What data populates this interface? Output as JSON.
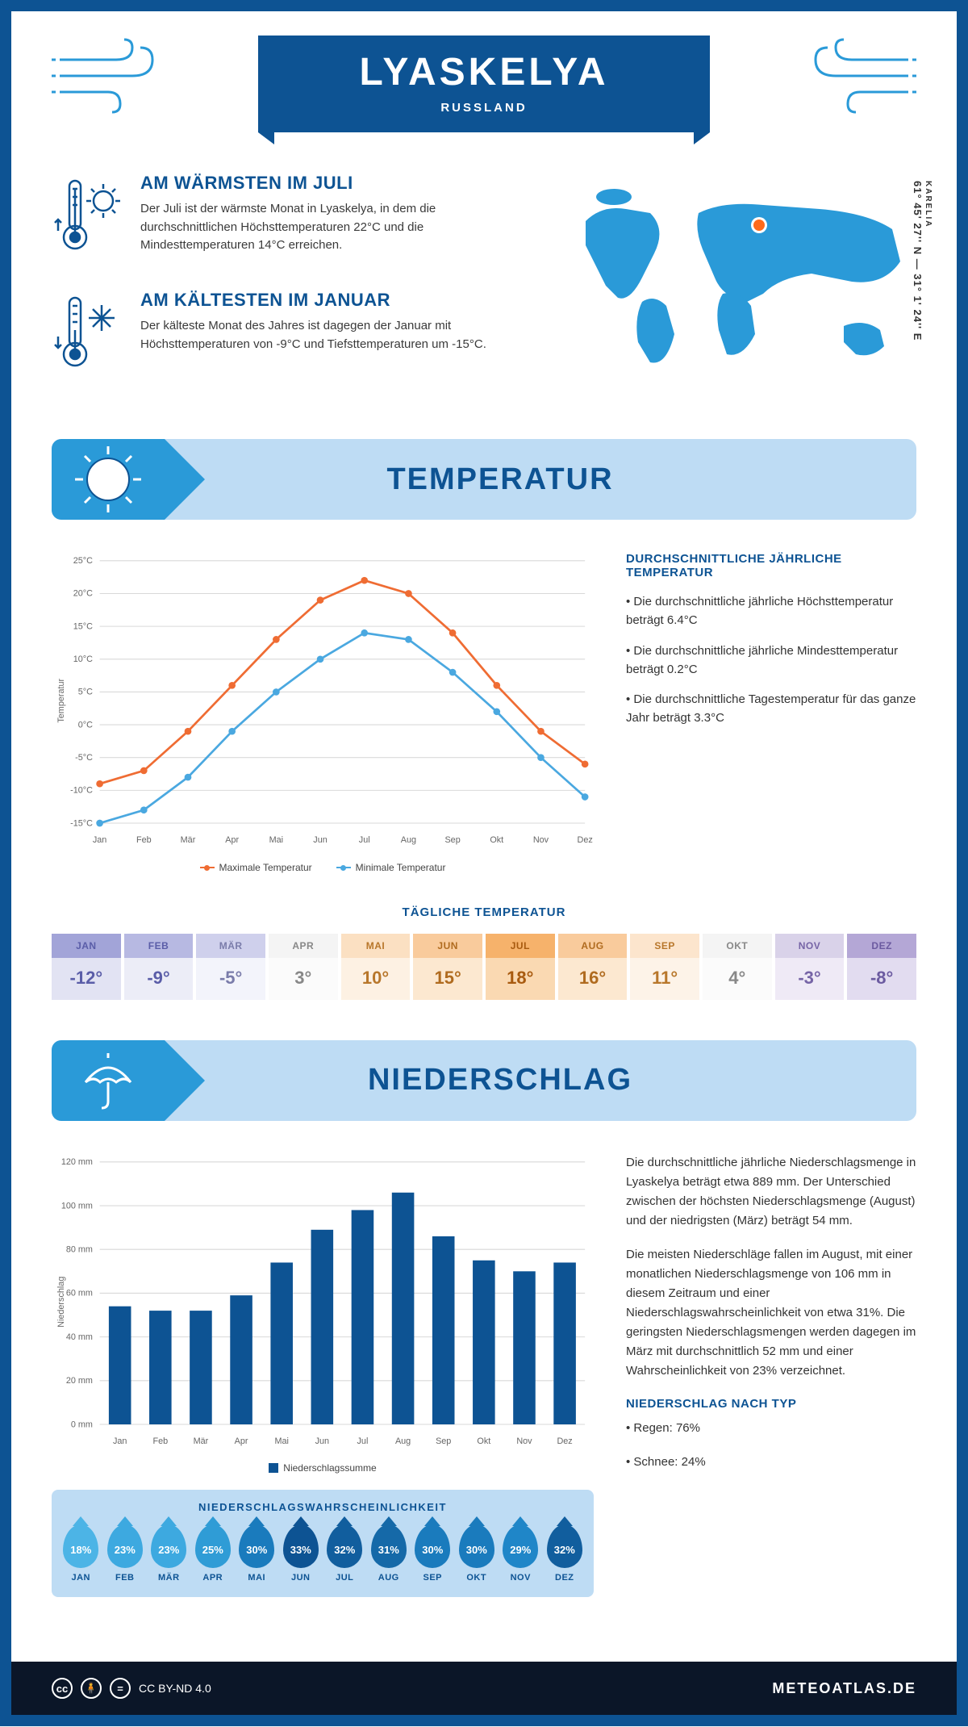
{
  "header": {
    "city": "LYASKELYA",
    "country": "RUSSLAND"
  },
  "map": {
    "region": "KARELIA",
    "coords": "61° 45' 27'' N — 31° 1' 24'' E",
    "marker_color": "#ff6a1a",
    "land_color": "#2a9ad8"
  },
  "facts": {
    "warm": {
      "title": "AM WÄRMSTEN IM JULI",
      "text": "Der Juli ist der wärmste Monat in Lyaskelya, in dem die durchschnittlichen Höchsttemperaturen 22°C und die Mindesttemperaturen 14°C erreichen."
    },
    "cold": {
      "title": "AM KÄLTESTEN IM JANUAR",
      "text": "Der kälteste Monat des Jahres ist dagegen der Januar mit Höchsttemperaturen von -9°C und Tiefsttemperaturen um -15°C."
    }
  },
  "colors": {
    "primary": "#0d5393",
    "accent": "#2a9ad8",
    "section_bg": "#bedcf4",
    "line_max": "#ef6c33",
    "line_min": "#4aa8e0",
    "bar": "#0d5393",
    "grid": "#d9d9d9"
  },
  "temperature_section": {
    "title": "TEMPERATUR",
    "chart": {
      "type": "line",
      "months": [
        "Jan",
        "Feb",
        "Mär",
        "Apr",
        "Mai",
        "Jun",
        "Jul",
        "Aug",
        "Sep",
        "Okt",
        "Nov",
        "Dez"
      ],
      "series": [
        {
          "name": "Maximale Temperatur",
          "values": [
            -9,
            -7,
            -1,
            6,
            13,
            19,
            22,
            20,
            14,
            6,
            -1,
            -6
          ],
          "color": "#ef6c33"
        },
        {
          "name": "Minimale Temperatur",
          "values": [
            -15,
            -13,
            -8,
            -1,
            5,
            10,
            14,
            13,
            8,
            2,
            -5,
            -11
          ],
          "color": "#4aa8e0"
        }
      ],
      "ylim": [
        -15,
        25
      ],
      "ytick_step": 5,
      "yunit": "°C",
      "y_title": "Temperatur",
      "line_width": 2.5,
      "marker_size": 4,
      "grid_color": "#d9d9d9",
      "axis_fontsize": 10
    },
    "summary": {
      "title": "DURCHSCHNITTLICHE JÄHRLICHE TEMPERATUR",
      "items": [
        "• Die durchschnittliche jährliche Höchsttemperatur beträgt 6.4°C",
        "• Die durchschnittliche jährliche Mindesttemperatur beträgt 0.2°C",
        "• Die durchschnittliche Tagestemperatur für das ganze Jahr beträgt 3.3°C"
      ]
    },
    "daily": {
      "title": "TÄGLICHE TEMPERATUR",
      "months": [
        "JAN",
        "FEB",
        "MÄR",
        "APR",
        "MAI",
        "JUN",
        "JUL",
        "AUG",
        "SEP",
        "OKT",
        "NOV",
        "DEZ"
      ],
      "values": [
        "-12°",
        "-9°",
        "-5°",
        "3°",
        "10°",
        "15°",
        "18°",
        "16°",
        "11°",
        "4°",
        "-3°",
        "-8°"
      ],
      "head_colors": [
        "#a2a4d8",
        "#b7b9e2",
        "#cfd0ec",
        "#f4f4f4",
        "#fbe0c2",
        "#f9cb9c",
        "#f6b26b",
        "#f9cb9c",
        "#fce5cd",
        "#f4f4f4",
        "#d9d2e9",
        "#b4a7d6"
      ],
      "body_colors": [
        "#e2e3f3",
        "#ecedf7",
        "#f3f4fb",
        "#fbfbfb",
        "#fdf1e3",
        "#fce8d0",
        "#fad9b2",
        "#fce8d0",
        "#fdf3e8",
        "#fbfbfb",
        "#efeaf6",
        "#e2dcf0"
      ],
      "head_text": [
        "#5a5da8",
        "#5a5da8",
        "#7a7caa",
        "#888",
        "#b8772b",
        "#b06b1f",
        "#a85a0f",
        "#b06b1f",
        "#b8772b",
        "#888",
        "#7664a6",
        "#6b5aa0"
      ],
      "body_text": [
        "#5a5da8",
        "#5a5da8",
        "#7a7caa",
        "#888",
        "#b8772b",
        "#b06b1f",
        "#a85a0f",
        "#b06b1f",
        "#b8772b",
        "#888",
        "#7664a6",
        "#6b5aa0"
      ]
    }
  },
  "precip_section": {
    "title": "NIEDERSCHLAG",
    "chart": {
      "type": "bar",
      "months": [
        "Jan",
        "Feb",
        "Mär",
        "Apr",
        "Mai",
        "Jun",
        "Jul",
        "Aug",
        "Sep",
        "Okt",
        "Nov",
        "Dez"
      ],
      "values": [
        54,
        52,
        52,
        59,
        74,
        89,
        98,
        106,
        86,
        75,
        70,
        74
      ],
      "ylim": [
        0,
        120
      ],
      "ytick_step": 20,
      "yunit": " mm",
      "y_title": "Niederschlag",
      "bar_color": "#0d5393",
      "bar_width": 0.55,
      "grid_color": "#d9d9d9",
      "legend_label": "Niederschlagssumme"
    },
    "summary": {
      "p1": "Die durchschnittliche jährliche Niederschlagsmenge in Lyaskelya beträgt etwa 889 mm. Der Unterschied zwischen der höchsten Niederschlagsmenge (August) und der niedrigsten (März) beträgt 54 mm.",
      "p2": "Die meisten Niederschläge fallen im August, mit einer monatlichen Niederschlagsmenge von 106 mm in diesem Zeitraum und einer Niederschlagswahrscheinlichkeit von etwa 31%. Die geringsten Niederschlagsmengen werden dagegen im März mit durchschnittlich 52 mm und einer Wahrscheinlichkeit von 23% verzeichnet.",
      "type_title": "NIEDERSCHLAG NACH TYP",
      "type_items": [
        "• Regen: 76%",
        "• Schnee: 24%"
      ]
    },
    "probability": {
      "title": "NIEDERSCHLAGSWAHRSCHEINLICHKEIT",
      "months": [
        "JAN",
        "FEB",
        "MÄR",
        "APR",
        "MAI",
        "JUN",
        "JUL",
        "AUG",
        "SEP",
        "OKT",
        "NOV",
        "DEZ"
      ],
      "values": [
        "18%",
        "23%",
        "23%",
        "25%",
        "30%",
        "33%",
        "32%",
        "31%",
        "30%",
        "30%",
        "29%",
        "32%"
      ],
      "colors": [
        "#4cb4e6",
        "#3da9e0",
        "#3da9e0",
        "#2f9cd6",
        "#1a7bbd",
        "#0d5393",
        "#115e9e",
        "#1569a8",
        "#1a7bbd",
        "#1a7bbd",
        "#1f86c8",
        "#115e9e"
      ]
    }
  },
  "footer": {
    "license": "CC BY-ND 4.0",
    "site": "METEOATLAS.DE"
  }
}
